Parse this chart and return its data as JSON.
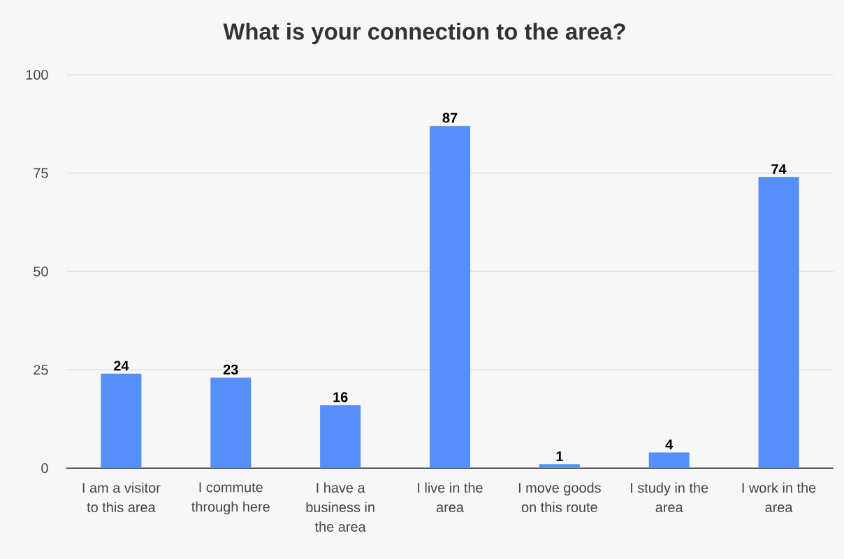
{
  "chart_data": {
    "type": "bar",
    "title": "What is your connection to the area?",
    "categories": [
      "I am a visitor to this area",
      "I commute through here",
      "I have a business in the area",
      "I live in the area",
      "I move goods on this route",
      "I study in the area",
      "I work in the area"
    ],
    "values": [
      24,
      23,
      16,
      87,
      1,
      4,
      74
    ],
    "color": "#5590fa",
    "ylim": [
      0,
      100
    ],
    "yticks": [
      0,
      25,
      50,
      75,
      100
    ],
    "grid": "y",
    "data_labels": true
  }
}
